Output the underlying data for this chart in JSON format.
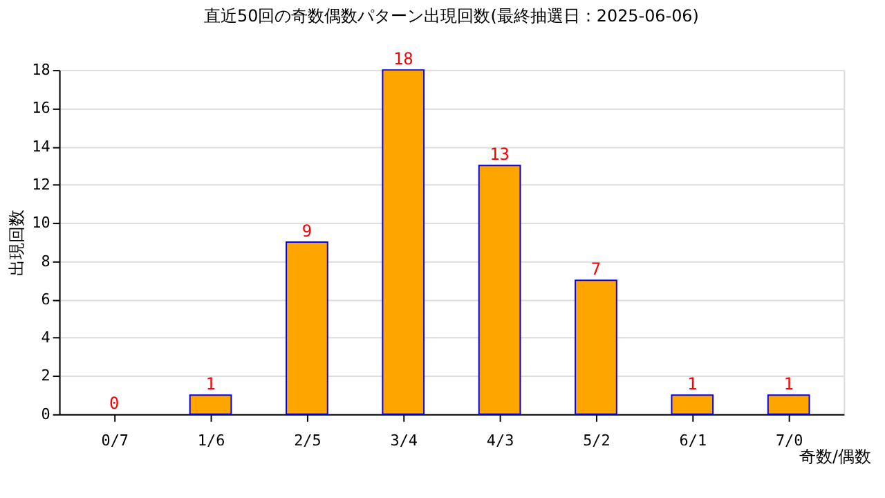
{
  "chart_data": {
    "type": "bar",
    "title": "直近50回の奇数偶数パターン出現回数(最終抽選日：2025-06-06)",
    "categories": [
      "0/7",
      "1/6",
      "2/5",
      "3/4",
      "4/3",
      "5/2",
      "6/1",
      "7/0"
    ],
    "values": [
      0,
      1,
      9,
      18,
      13,
      7,
      1,
      1
    ],
    "color": "#ffa500",
    "xlabel": "奇数/偶数",
    "ylabel": "出現回数",
    "ylim": [
      0,
      18
    ],
    "yticks": [
      0,
      2,
      4,
      6,
      8,
      10,
      12,
      14,
      16,
      18
    ],
    "grid": "y",
    "data_labels": true
  }
}
